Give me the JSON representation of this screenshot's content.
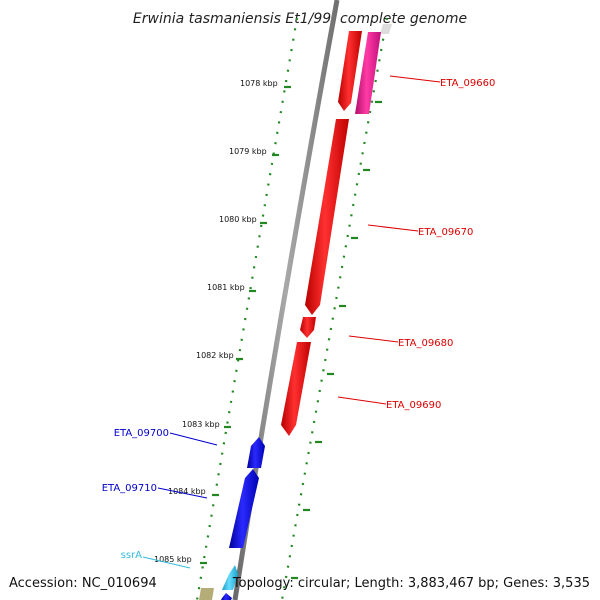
{
  "title": "Erwinia tasmaniensis Et1/99, complete genome",
  "footer": {
    "accession": "Accession: NC_010694",
    "summary": "Topology: circular; Length: 3,883,467 bp; Genes: 3,535"
  },
  "ticks": [
    "1078 kbp",
    "1079 kbp",
    "1080 kbp",
    "1081 kbp",
    "1082 kbp",
    "1083 kbp",
    "1084 kbp",
    "1085 kbp"
  ],
  "genes": [
    {
      "label": "ETA_09660",
      "color": "#dd0000"
    },
    {
      "label": "ETA_09670",
      "color": "#dd0000"
    },
    {
      "label": "ETA_09680",
      "color": "#dd0000"
    },
    {
      "label": "ETA_09690",
      "color": "#dd0000"
    },
    {
      "label": "ETA_09700",
      "color": "#0000cc"
    },
    {
      "label": "ETA_09710",
      "color": "#0000cc"
    },
    {
      "label": "ssrA",
      "color": "#33bbdd"
    }
  ],
  "colors": {
    "backbone": "#8a8a8a",
    "tick_dots": "#228822",
    "forward_gene": "#ff0000",
    "reverse_gene": "#0000ee",
    "magenta_gene": "#e8188e",
    "rna_gene": "#44ccee",
    "misc_feature": "#b5ad78"
  }
}
